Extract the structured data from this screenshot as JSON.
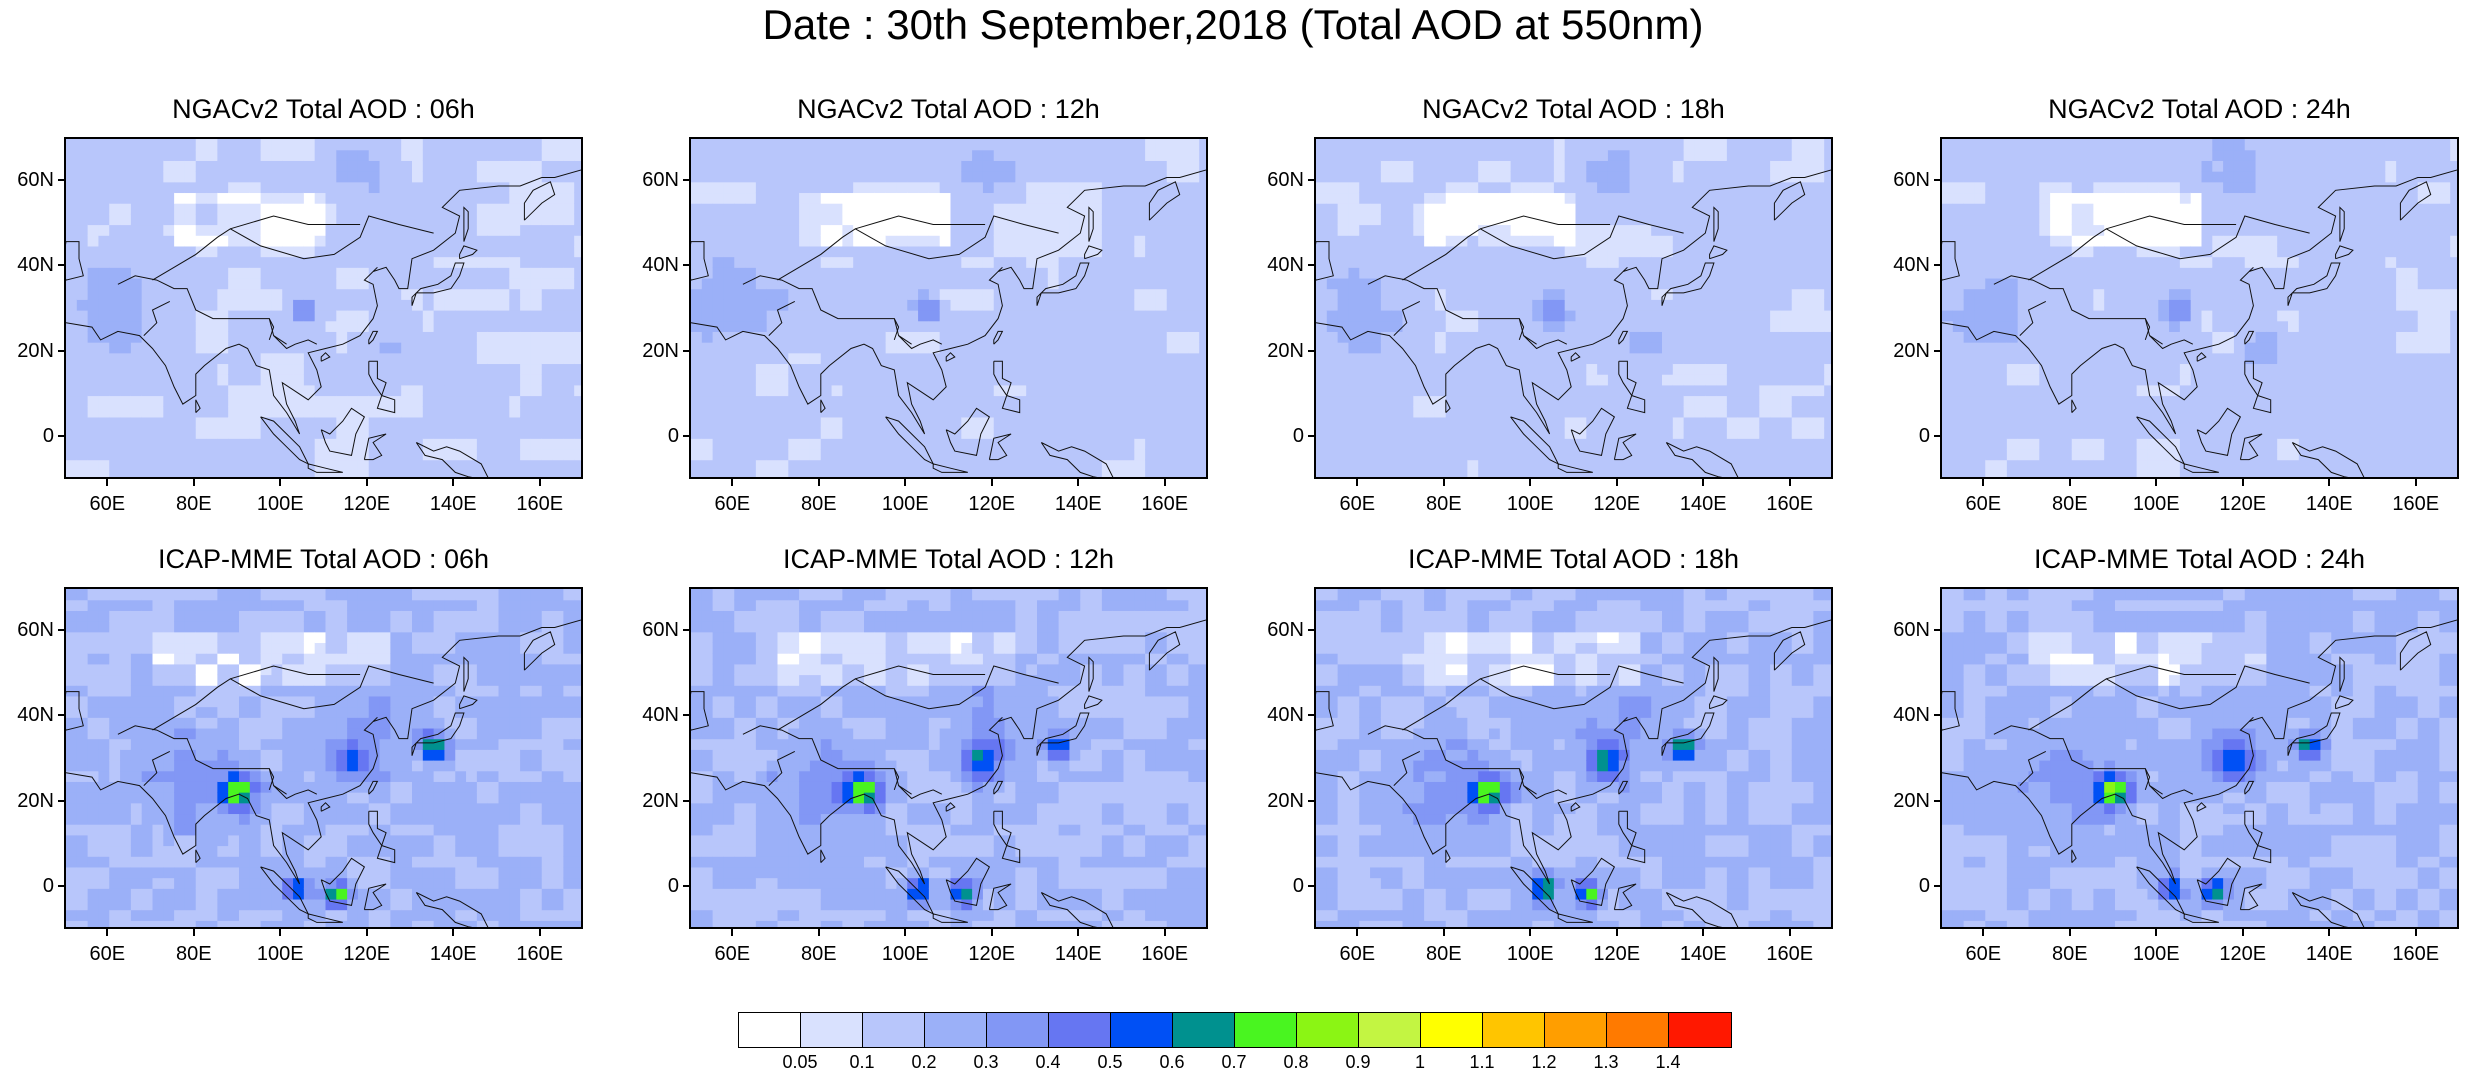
{
  "title": "Date : 30th September,2018 (Total AOD at 550nm)",
  "panels": [
    {
      "title": "NGACv2 Total AOD : 06h",
      "model": "ngac",
      "hour": 6
    },
    {
      "title": "NGACv2 Total AOD : 12h",
      "model": "ngac",
      "hour": 12
    },
    {
      "title": "NGACv2 Total AOD : 18h",
      "model": "ngac",
      "hour": 18
    },
    {
      "title": "NGACv2 Total AOD : 24h",
      "model": "ngac",
      "hour": 24
    },
    {
      "title": "ICAP-MME Total AOD : 06h",
      "model": "icap",
      "hour": 6
    },
    {
      "title": "ICAP-MME Total AOD : 12h",
      "model": "icap",
      "hour": 12
    },
    {
      "title": "ICAP-MME Total AOD : 18h",
      "model": "icap",
      "hour": 18
    },
    {
      "title": "ICAP-MME Total AOD : 24h",
      "model": "icap",
      "hour": 24
    }
  ],
  "axes": {
    "lon_range": [
      50,
      170
    ],
    "lat_range": [
      -10,
      70
    ],
    "lat_ticks": [
      "60N",
      "40N",
      "20N",
      "0"
    ],
    "lon_ticks": [
      "60E",
      "80E",
      "100E",
      "120E",
      "140E",
      "160E"
    ]
  },
  "colorbar": {
    "colors": [
      "#ffffff",
      "#d9e1fe",
      "#b8c6fb",
      "#9bb0f8",
      "#8297f5",
      "#6676f2",
      "#0050f5",
      "#00918f",
      "#49f520",
      "#8bf514",
      "#c3f542",
      "#ffff00",
      "#ffc500",
      "#ff9e00",
      "#ff7a00",
      "#ff1800"
    ],
    "labels": [
      "0.05",
      "0.1",
      "0.2",
      "0.3",
      "0.4",
      "0.5",
      "0.6",
      "0.7",
      "0.8",
      "0.9",
      "1",
      "1.1",
      "1.2",
      "1.3",
      "1.4"
    ]
  }
}
